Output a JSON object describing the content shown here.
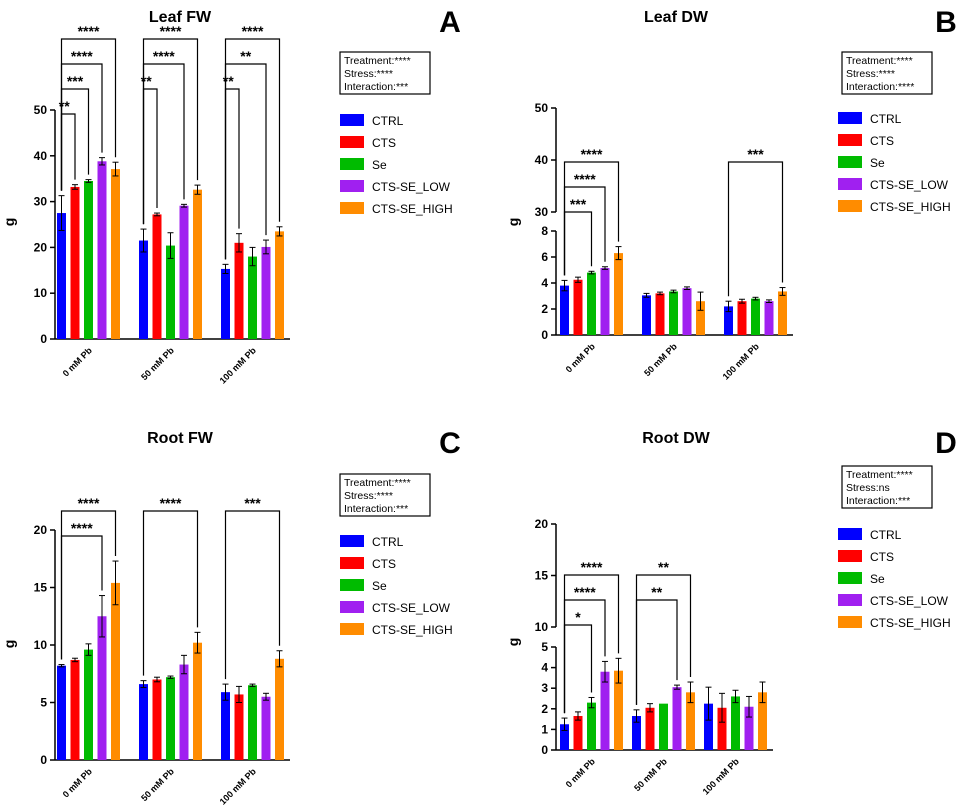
{
  "chart_data": [
    {
      "type": "bar",
      "panel": "A",
      "title": "Leaf FW",
      "ylabel": "g",
      "categories": [
        "0 mM Pb",
        "50 mM Pb",
        "100 mM Pb"
      ],
      "yticks": [
        0,
        10,
        20,
        30,
        40,
        50
      ],
      "series": [
        {
          "name": "CTRL",
          "color": "#0000ff",
          "values": [
            27.5,
            21.5,
            15.3
          ],
          "err": [
            3.8,
            2.5,
            1.0
          ]
        },
        {
          "name": "CTS",
          "color": "#ff0000",
          "values": [
            33.2,
            27.2,
            21.0
          ],
          "err": [
            0.5,
            0.3,
            2.0
          ]
        },
        {
          "name": "Se",
          "color": "#00bb00",
          "values": [
            34.5,
            20.4,
            18.0
          ],
          "err": [
            0.3,
            2.8,
            2.0
          ]
        },
        {
          "name": "CTS-SE_LOW",
          "color": "#a020f0",
          "values": [
            38.8,
            29.1,
            20.1
          ],
          "err": [
            0.8,
            0.3,
            1.5
          ]
        },
        {
          "name": "CTS-SE_HIGH",
          "color": "#ff8c00",
          "values": [
            37.1,
            32.6,
            23.5
          ],
          "err": [
            1.5,
            1.0,
            1.0
          ]
        }
      ],
      "comparisons": [
        {
          "group": 0,
          "to": 1,
          "label": "**"
        },
        {
          "group": 0,
          "to": 2,
          "label": "***"
        },
        {
          "group": 0,
          "to": 3,
          "label": "****"
        },
        {
          "group": 0,
          "to": 4,
          "label": "****"
        },
        {
          "group": 1,
          "to": 1,
          "label": "**"
        },
        {
          "group": 1,
          "to": 3,
          "label": "****"
        },
        {
          "group": 1,
          "to": 4,
          "label": "****"
        },
        {
          "group": 2,
          "to": 1,
          "label": "**"
        },
        {
          "group": 2,
          "to": 3,
          "label": "**"
        },
        {
          "group": 2,
          "to": 4,
          "label": "****"
        }
      ],
      "stats": [
        "Treatment:****",
        "Stress:****",
        "Interaction:***"
      ]
    },
    {
      "type": "bar",
      "panel": "B",
      "title": "Leaf DW",
      "ylabel": "g",
      "axis_break": {
        "lower": [
          0,
          8
        ],
        "upper": [
          30,
          50
        ]
      },
      "categories": [
        "0 mM Pb",
        "50 mM Pb",
        "100 mM Pb"
      ],
      "yticks": [
        0,
        2,
        4,
        6,
        8,
        30,
        40,
        50
      ],
      "series": [
        {
          "name": "CTRL",
          "color": "#0000ff",
          "values": [
            3.8,
            3.05,
            2.2
          ],
          "err": [
            0.4,
            0.15,
            0.4
          ]
        },
        {
          "name": "CTS",
          "color": "#ff0000",
          "values": [
            4.25,
            3.2,
            2.6
          ],
          "err": [
            0.2,
            0.1,
            0.15
          ]
        },
        {
          "name": "Se",
          "color": "#00bb00",
          "values": [
            4.8,
            3.35,
            2.8
          ],
          "err": [
            0.1,
            0.1,
            0.1
          ]
        },
        {
          "name": "CTS-SE_LOW",
          "color": "#a020f0",
          "values": [
            5.15,
            3.6,
            2.6
          ],
          "err": [
            0.1,
            0.1,
            0.1
          ]
        },
        {
          "name": "CTS-SE_HIGH",
          "color": "#ff8c00",
          "values": [
            6.3,
            2.6,
            3.35
          ],
          "err": [
            0.5,
            0.7,
            0.3
          ]
        }
      ],
      "comparisons": [
        {
          "group": 0,
          "to": 2,
          "label": "***"
        },
        {
          "group": 0,
          "to": 3,
          "label": "****"
        },
        {
          "group": 0,
          "to": 4,
          "label": "****"
        },
        {
          "group": 2,
          "to": 4,
          "label": "***"
        }
      ],
      "stats": [
        "Treatment:****",
        "Stress:****",
        "Interaction:****"
      ]
    },
    {
      "type": "bar",
      "panel": "C",
      "title": "Root FW",
      "ylabel": "g",
      "categories": [
        "0 mM Pb",
        "50 mM Pb",
        "100 mM Pb"
      ],
      "yticks": [
        0,
        5,
        10,
        15,
        20
      ],
      "series": [
        {
          "name": "CTRL",
          "color": "#0000ff",
          "values": [
            8.2,
            6.6,
            5.9
          ],
          "err": [
            0.1,
            0.3,
            0.7
          ]
        },
        {
          "name": "CTS",
          "color": "#ff0000",
          "values": [
            8.7,
            7.0,
            5.7
          ],
          "err": [
            0.15,
            0.2,
            0.7
          ]
        },
        {
          "name": "Se",
          "color": "#00bb00",
          "values": [
            9.6,
            7.2,
            6.5
          ],
          "err": [
            0.5,
            0.1,
            0.1
          ]
        },
        {
          "name": "CTS-SE_LOW",
          "color": "#a020f0",
          "values": [
            12.5,
            8.3,
            5.5
          ],
          "err": [
            1.8,
            0.8,
            0.3
          ]
        },
        {
          "name": "CTS-SE_HIGH",
          "color": "#ff8c00",
          "values": [
            15.4,
            10.2,
            8.8
          ],
          "err": [
            1.9,
            0.9,
            0.7
          ]
        }
      ],
      "comparisons": [
        {
          "group": 0,
          "to": 3,
          "label": "****"
        },
        {
          "group": 0,
          "to": 4,
          "label": "****"
        },
        {
          "group": 1,
          "to": 4,
          "label": "****"
        },
        {
          "group": 2,
          "to": 4,
          "label": "***"
        }
      ],
      "stats": [
        "Treatment:****",
        "Stress:****",
        "Interaction:***"
      ]
    },
    {
      "type": "bar",
      "panel": "D",
      "title": "Root DW",
      "ylabel": "g",
      "axis_break": {
        "lower": [
          0,
          5
        ],
        "upper": [
          10,
          20
        ]
      },
      "categories": [
        "0 mM Pb",
        "50 mM Pb",
        "100 mM Pb"
      ],
      "yticks": [
        0,
        1,
        2,
        3,
        4,
        5,
        10,
        15,
        20
      ],
      "series": [
        {
          "name": "CTRL",
          "color": "#0000ff",
          "values": [
            1.25,
            1.65,
            2.25
          ],
          "err": [
            0.3,
            0.3,
            0.8
          ]
        },
        {
          "name": "CTS",
          "color": "#ff0000",
          "values": [
            1.65,
            2.05,
            2.05
          ],
          "err": [
            0.2,
            0.2,
            0.7
          ]
        },
        {
          "name": "Se",
          "color": "#00bb00",
          "values": [
            2.3,
            2.25,
            2.6
          ],
          "err": [
            0.25,
            0.0,
            0.3
          ]
        },
        {
          "name": "CTS-SE_LOW",
          "color": "#a020f0",
          "values": [
            3.8,
            3.05,
            2.1
          ],
          "err": [
            0.5,
            0.1,
            0.5
          ]
        },
        {
          "name": "CTS-SE_HIGH",
          "color": "#ff8c00",
          "values": [
            3.85,
            2.8,
            2.8
          ],
          "err": [
            0.6,
            0.5,
            0.5
          ]
        }
      ],
      "comparisons": [
        {
          "group": 0,
          "to": 2,
          "label": "*"
        },
        {
          "group": 0,
          "to": 3,
          "label": "****"
        },
        {
          "group": 0,
          "to": 4,
          "label": "****"
        },
        {
          "group": 1,
          "to": 3,
          "label": "**"
        },
        {
          "group": 1,
          "to": 4,
          "label": "**"
        }
      ],
      "stats": [
        "Treatment:****",
        "Stress:ns",
        "Interaction:***"
      ]
    }
  ]
}
